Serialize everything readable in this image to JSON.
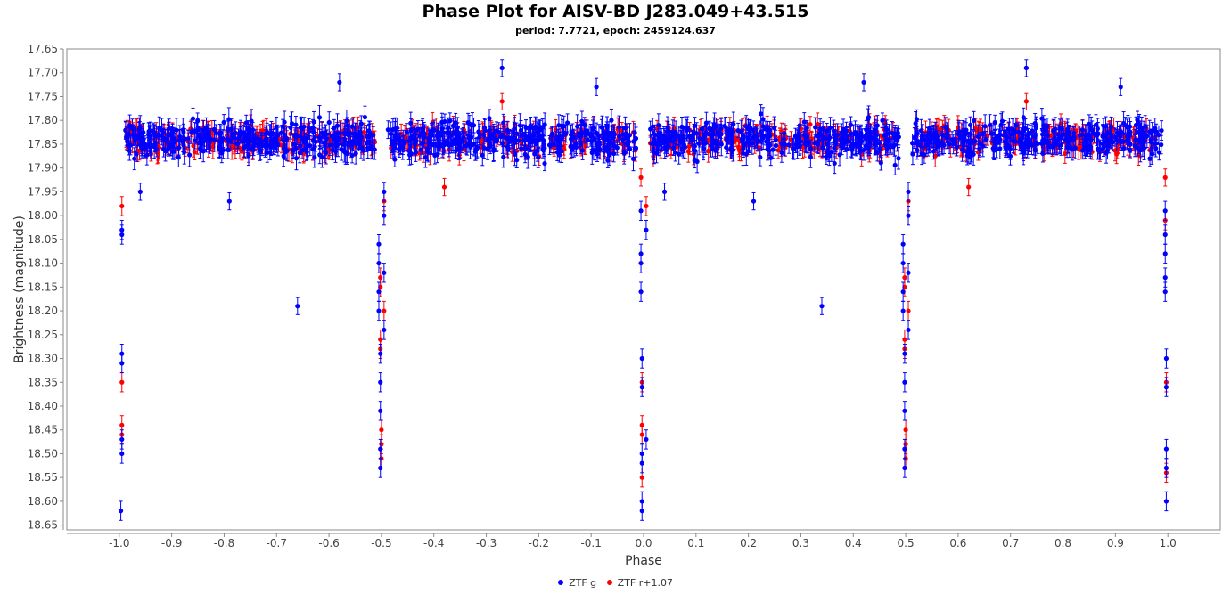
{
  "chart_data": {
    "type": "scatter",
    "title": "Phase Plot for AISV-BD J283.049+43.515",
    "subtitle": "period: 7.7721, epoch: 2459124.637",
    "xlabel": "Phase",
    "ylabel": "Brightness (magnitude)",
    "xlim": [
      -1.1,
      1.1
    ],
    "ylim": [
      18.66,
      17.65
    ],
    "y_inverted": true,
    "x_ticks": [
      "-1.0",
      "-0.9",
      "-0.8",
      "-0.7",
      "-0.6",
      "-0.5",
      "-0.4",
      "-0.3",
      "-0.2",
      "-0.1",
      "0.0",
      "0.1",
      "0.2",
      "0.3",
      "0.4",
      "0.5",
      "0.6",
      "0.7",
      "0.8",
      "0.9",
      "1.0"
    ],
    "y_ticks": [
      "17.65",
      "17.70",
      "17.75",
      "17.80",
      "17.85",
      "17.90",
      "17.95",
      "18.00",
      "18.05",
      "18.10",
      "18.15",
      "18.20",
      "18.25",
      "18.30",
      "18.35",
      "18.40",
      "18.45",
      "18.50",
      "18.55",
      "18.60",
      "18.65"
    ],
    "grid": false,
    "legend_position": "bottom-center",
    "series": [
      {
        "name": "ZTF g",
        "color": "#0000ff",
        "baseline": 17.84,
        "baseline_scatter": 0.035,
        "primary_eclipse_depth": 18.62,
        "secondary_eclipse_depth": 18.55,
        "eclipse_points": [
          [
            -0.995,
            18.03
          ],
          [
            -0.995,
            18.04
          ],
          [
            -0.995,
            18.29
          ],
          [
            -0.995,
            18.31
          ],
          [
            -0.995,
            18.47
          ],
          [
            -0.995,
            18.5
          ],
          [
            -0.997,
            18.62
          ],
          [
            -0.505,
            18.06
          ],
          [
            -0.505,
            18.1
          ],
          [
            -0.505,
            18.16
          ],
          [
            -0.505,
            18.2
          ],
          [
            -0.502,
            18.29
          ],
          [
            -0.502,
            18.35
          ],
          [
            -0.502,
            18.41
          ],
          [
            -0.502,
            18.49
          ],
          [
            -0.502,
            18.53
          ],
          [
            -0.495,
            17.95
          ],
          [
            -0.495,
            18.0
          ],
          [
            -0.495,
            18.12
          ],
          [
            -0.495,
            18.24
          ],
          [
            -0.005,
            17.99
          ],
          [
            -0.005,
            18.08
          ],
          [
            -0.005,
            18.1
          ],
          [
            -0.005,
            18.16
          ],
          [
            -0.003,
            18.3
          ],
          [
            -0.003,
            18.36
          ],
          [
            -0.003,
            18.5
          ],
          [
            -0.003,
            18.52
          ],
          [
            -0.003,
            18.6
          ],
          [
            -0.003,
            18.62
          ],
          [
            0.005,
            18.03
          ],
          [
            0.005,
            18.47
          ],
          [
            0.495,
            18.06
          ],
          [
            0.495,
            18.1
          ],
          [
            0.495,
            18.16
          ],
          [
            0.495,
            18.2
          ],
          [
            0.498,
            18.29
          ],
          [
            0.498,
            18.35
          ],
          [
            0.498,
            18.41
          ],
          [
            0.498,
            18.49
          ],
          [
            0.498,
            18.53
          ],
          [
            0.505,
            17.95
          ],
          [
            0.505,
            18.0
          ],
          [
            0.505,
            18.12
          ],
          [
            0.505,
            18.24
          ],
          [
            0.995,
            17.99
          ],
          [
            0.995,
            18.04
          ],
          [
            0.995,
            18.08
          ],
          [
            0.995,
            18.13
          ],
          [
            0.995,
            18.16
          ],
          [
            0.997,
            18.3
          ],
          [
            0.997,
            18.36
          ],
          [
            0.997,
            18.49
          ],
          [
            0.997,
            18.53
          ],
          [
            0.997,
            18.6
          ]
        ],
        "outliers": [
          [
            -0.66,
            18.19
          ],
          [
            0.34,
            18.19
          ],
          [
            -0.27,
            17.69
          ],
          [
            0.73,
            17.69
          ],
          [
            -0.09,
            17.73
          ],
          [
            0.91,
            17.73
          ],
          [
            -0.58,
            17.72
          ],
          [
            0.42,
            17.72
          ],
          [
            -0.96,
            17.95
          ],
          [
            0.04,
            17.95
          ],
          [
            -0.79,
            17.97
          ],
          [
            0.21,
            17.97
          ]
        ]
      },
      {
        "name": "ZTF r+1.07",
        "color": "#ff0000",
        "baseline": 17.84,
        "baseline_scatter": 0.028,
        "primary_eclipse_depth": 18.55,
        "secondary_eclipse_depth": 18.55,
        "eclipse_points": [
          [
            -0.995,
            17.98
          ],
          [
            -0.995,
            18.35
          ],
          [
            -0.995,
            18.44
          ],
          [
            -0.995,
            18.46
          ],
          [
            -0.502,
            18.13
          ],
          [
            -0.502,
            18.15
          ],
          [
            -0.502,
            18.26
          ],
          [
            -0.502,
            18.28
          ],
          [
            -0.5,
            18.45
          ],
          [
            -0.5,
            18.48
          ],
          [
            -0.5,
            18.51
          ],
          [
            -0.495,
            17.97
          ],
          [
            -0.495,
            18.2
          ],
          [
            0.005,
            17.98
          ],
          [
            -0.003,
            18.35
          ],
          [
            -0.003,
            18.44
          ],
          [
            -0.003,
            18.46
          ],
          [
            -0.003,
            18.55
          ],
          [
            0.498,
            18.13
          ],
          [
            0.498,
            18.15
          ],
          [
            0.498,
            18.26
          ],
          [
            0.498,
            18.28
          ],
          [
            0.5,
            18.45
          ],
          [
            0.5,
            18.48
          ],
          [
            0.5,
            18.51
          ],
          [
            0.505,
            17.97
          ],
          [
            0.505,
            18.2
          ],
          [
            0.995,
            18.01
          ],
          [
            0.997,
            18.35
          ],
          [
            0.997,
            18.54
          ]
        ],
        "outliers": [
          [
            -0.27,
            17.76
          ],
          [
            0.73,
            17.76
          ],
          [
            -0.38,
            17.94
          ],
          [
            0.62,
            17.94
          ],
          [
            -0.005,
            17.92
          ],
          [
            0.995,
            17.92
          ]
        ]
      }
    ]
  }
}
